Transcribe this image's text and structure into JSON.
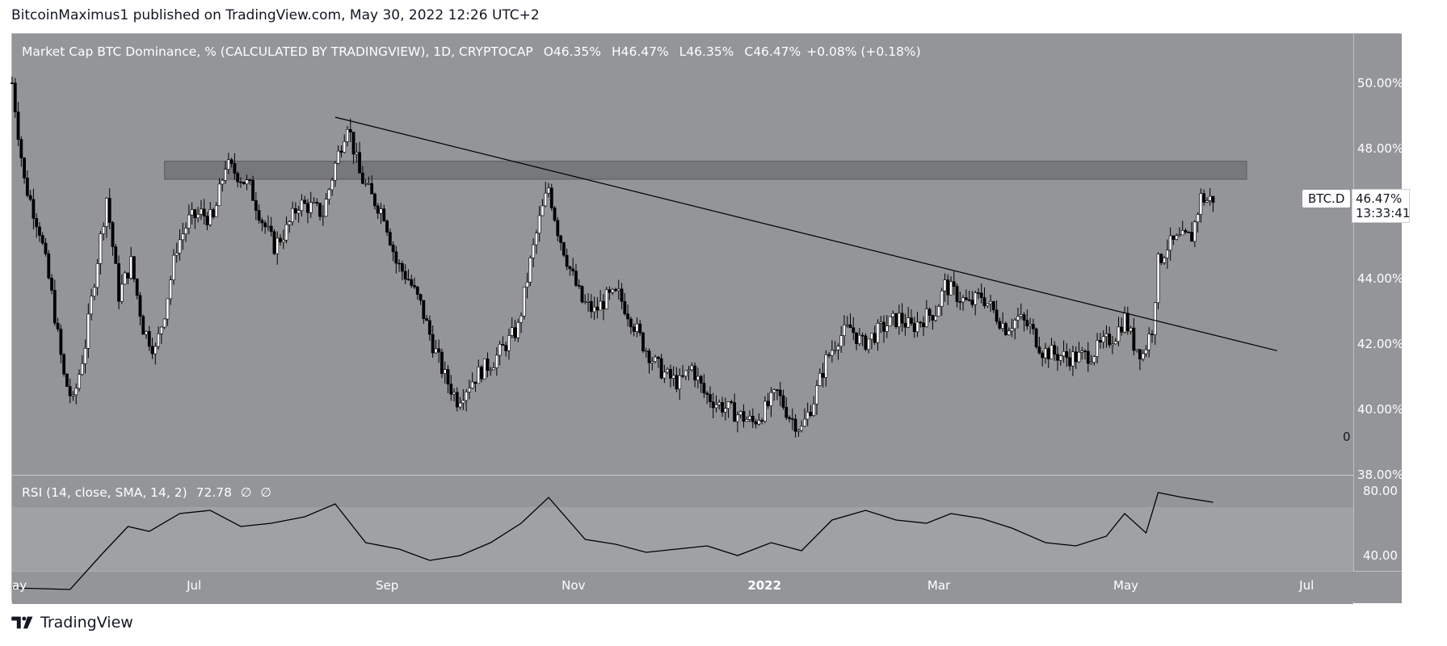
{
  "header": {
    "published_by": "BitcoinMaximus1 published on TradingView.com, May 30, 2022 12:26 UTC+2"
  },
  "legend": {
    "title": "Market Cap BTC Dominance, % (CALCULATED BY TRADINGVIEW), 1D, CRYPTOCAP",
    "open_label": "O",
    "open_value": "46.35%",
    "high_label": "H",
    "high_value": "46.47%",
    "low_label": "L",
    "low_value": "46.35%",
    "close_label": "C",
    "close_value": "46.47%",
    "change": "+0.08% (+0.18%)"
  },
  "symbol_tag": "BTC.D",
  "last_price": "46.47%",
  "countdown": "13:33:41",
  "zero_label": "0",
  "rsi_legend": {
    "name": "RSI (14, close, SMA, 14, 2)",
    "value": "72.78",
    "flag1": "∅",
    "flag2": "∅"
  },
  "footer": {
    "brand": "TradingView"
  },
  "colors": {
    "pane_bg": "#939598",
    "candle": "#000000",
    "band": "#6e6f73",
    "rsi_band": "#a3a5a8",
    "text": "#ffffff"
  },
  "chart_data": [
    {
      "type": "candlestick",
      "title": "Market Cap BTC Dominance, % (CALCULATED BY TRADINGVIEW), 1D, CRYPTOCAP",
      "x_ticks": [
        "ay",
        "Jul",
        "Sep",
        "Nov",
        "2022",
        "Mar",
        "May",
        "Jul"
      ],
      "x_tick_dates": [
        "2021-05-01",
        "2021-07-01",
        "2021-09-01",
        "2021-11-01",
        "2022-01-01",
        "2022-03-01",
        "2022-05-01",
        "2022-07-01"
      ],
      "y_ticks": [
        "50.00%",
        "48.00%",
        "44.00%",
        "42.00%",
        "40.00%",
        "38.00%"
      ],
      "y_tick_values": [
        50,
        48,
        44,
        42,
        40,
        38
      ],
      "ylim": [
        38,
        51.5
      ],
      "xlim": [
        "2021-05-01",
        "2022-07-15"
      ],
      "grid": false,
      "close_series": [
        [
          "2021-05-01",
          50.0
        ],
        [
          "2021-05-05",
          47.0
        ],
        [
          "2021-05-10",
          45.5
        ],
        [
          "2021-05-14",
          43.5
        ],
        [
          "2021-05-18",
          41.0
        ],
        [
          "2021-05-21",
          40.2
        ],
        [
          "2021-05-25",
          42.0
        ],
        [
          "2021-05-28",
          44.0
        ],
        [
          "2021-06-01",
          46.5
        ],
        [
          "2021-06-05",
          43.5
        ],
        [
          "2021-06-09",
          44.5
        ],
        [
          "2021-06-13",
          42.5
        ],
        [
          "2021-06-17",
          41.8
        ],
        [
          "2021-06-20",
          43.0
        ],
        [
          "2021-06-24",
          45.0
        ],
        [
          "2021-06-28",
          45.8
        ],
        [
          "2021-07-02",
          46.0
        ],
        [
          "2021-07-06",
          45.8
        ],
        [
          "2021-07-10",
          47.5
        ],
        [
          "2021-07-14",
          47.2
        ],
        [
          "2021-07-18",
          46.8
        ],
        [
          "2021-07-22",
          45.8
        ],
        [
          "2021-07-26",
          45.0
        ],
        [
          "2021-07-30",
          45.5
        ],
        [
          "2021-08-03",
          46.3
        ],
        [
          "2021-08-07",
          46.2
        ],
        [
          "2021-08-11",
          46.0
        ],
        [
          "2021-08-15",
          47.5
        ],
        [
          "2021-08-19",
          48.8
        ],
        [
          "2021-08-23",
          47.2
        ],
        [
          "2021-08-27",
          46.5
        ],
        [
          "2021-08-31",
          46.0
        ],
        [
          "2021-09-04",
          44.5
        ],
        [
          "2021-09-08",
          44.0
        ],
        [
          "2021-09-12",
          43.2
        ],
        [
          "2021-09-16",
          42.0
        ],
        [
          "2021-09-20",
          41.0
        ],
        [
          "2021-09-24",
          40.3
        ],
        [
          "2021-09-28",
          40.8
        ],
        [
          "2021-10-02",
          41.2
        ],
        [
          "2021-10-06",
          41.5
        ],
        [
          "2021-10-10",
          42.0
        ],
        [
          "2021-10-14",
          42.5
        ],
        [
          "2021-10-18",
          44.5
        ],
        [
          "2021-10-21",
          45.8
        ],
        [
          "2021-10-24",
          46.8
        ],
        [
          "2021-10-27",
          45.5
        ],
        [
          "2021-10-31",
          44.3
        ],
        [
          "2021-11-04",
          43.3
        ],
        [
          "2021-11-08",
          43.0
        ],
        [
          "2021-11-12",
          43.4
        ],
        [
          "2021-11-16",
          43.5
        ],
        [
          "2021-11-20",
          42.8
        ],
        [
          "2021-11-24",
          42.0
        ],
        [
          "2021-11-28",
          41.4
        ],
        [
          "2021-12-02",
          41.0
        ],
        [
          "2021-12-06",
          40.8
        ],
        [
          "2021-12-10",
          41.3
        ],
        [
          "2021-12-14",
          40.5
        ],
        [
          "2021-12-18",
          40.2
        ],
        [
          "2021-12-22",
          40.0
        ],
        [
          "2021-12-26",
          39.8
        ],
        [
          "2021-12-30",
          39.6
        ],
        [
          "2022-01-03",
          40.0
        ],
        [
          "2022-01-07",
          40.5
        ],
        [
          "2022-01-11",
          39.8
        ],
        [
          "2022-01-15",
          39.4
        ],
        [
          "2022-01-19",
          40.3
        ],
        [
          "2022-01-23",
          41.5
        ],
        [
          "2022-01-27",
          42.2
        ],
        [
          "2022-01-31",
          42.5
        ],
        [
          "2022-02-04",
          42.0
        ],
        [
          "2022-02-08",
          42.3
        ],
        [
          "2022-02-12",
          42.6
        ],
        [
          "2022-02-16",
          42.8
        ],
        [
          "2022-02-20",
          42.5
        ],
        [
          "2022-02-24",
          42.8
        ],
        [
          "2022-02-28",
          43.0
        ],
        [
          "2022-03-03",
          43.8
        ],
        [
          "2022-03-07",
          43.5
        ],
        [
          "2022-03-11",
          43.2
        ],
        [
          "2022-03-15",
          43.5
        ],
        [
          "2022-03-19",
          43.0
        ],
        [
          "2022-03-23",
          42.5
        ],
        [
          "2022-03-27",
          42.8
        ],
        [
          "2022-03-31",
          42.5
        ],
        [
          "2022-04-04",
          41.8
        ],
        [
          "2022-04-08",
          41.7
        ],
        [
          "2022-04-12",
          41.6
        ],
        [
          "2022-04-16",
          41.6
        ],
        [
          "2022-04-20",
          41.7
        ],
        [
          "2022-04-24",
          42.0
        ],
        [
          "2022-04-28",
          42.3
        ],
        [
          "2022-05-01",
          42.8
        ],
        [
          "2022-05-04",
          42.0
        ],
        [
          "2022-05-07",
          41.7
        ],
        [
          "2022-05-10",
          42.5
        ],
        [
          "2022-05-12",
          44.5
        ],
        [
          "2022-05-15",
          45.0
        ],
        [
          "2022-05-19",
          45.2
        ],
        [
          "2022-05-23",
          45.3
        ],
        [
          "2022-05-26",
          46.5
        ],
        [
          "2022-05-28",
          46.4
        ],
        [
          "2022-05-30",
          46.47
        ]
      ],
      "annotations": {
        "resistance_zone": [
          47.05,
          47.6
        ],
        "trendline": [
          [
            "2021-08-15",
            48.95
          ],
          [
            "2022-06-20",
            41.8
          ]
        ]
      }
    },
    {
      "type": "line",
      "title": "RSI (14, close, SMA, 14, 2)",
      "y_ticks": [
        "80.00",
        "40.00"
      ],
      "y_tick_values": [
        80,
        40
      ],
      "ylim": [
        10,
        90
      ],
      "band": [
        30,
        70
      ],
      "series": [
        {
          "name": "RSI",
          "x": [
            "2021-05-01",
            "2021-05-20",
            "2021-05-31",
            "2021-06-08",
            "2021-06-15",
            "2021-06-25",
            "2021-07-05",
            "2021-07-15",
            "2021-07-25",
            "2021-08-05",
            "2021-08-15",
            "2021-08-25",
            "2021-09-05",
            "2021-09-15",
            "2021-09-25",
            "2021-10-05",
            "2021-10-15",
            "2021-10-24",
            "2021-11-05",
            "2021-11-15",
            "2021-11-25",
            "2021-12-05",
            "2021-12-15",
            "2021-12-25",
            "2022-01-05",
            "2022-01-15",
            "2022-01-25",
            "2022-02-05",
            "2022-02-15",
            "2022-02-25",
            "2022-03-05",
            "2022-03-15",
            "2022-03-25",
            "2022-04-05",
            "2022-04-15",
            "2022-04-25",
            "2022-05-01",
            "2022-05-08",
            "2022-05-12",
            "2022-05-20",
            "2022-05-30"
          ],
          "values": [
            20,
            19,
            42,
            58,
            55,
            66,
            68,
            58,
            60,
            64,
            72,
            48,
            44,
            37,
            40,
            48,
            60,
            76,
            50,
            47,
            42,
            44,
            46,
            40,
            48,
            43,
            62,
            68,
            62,
            60,
            66,
            63,
            57,
            48,
            46,
            52,
            66,
            54,
            79,
            76,
            73
          ]
        }
      ]
    }
  ]
}
